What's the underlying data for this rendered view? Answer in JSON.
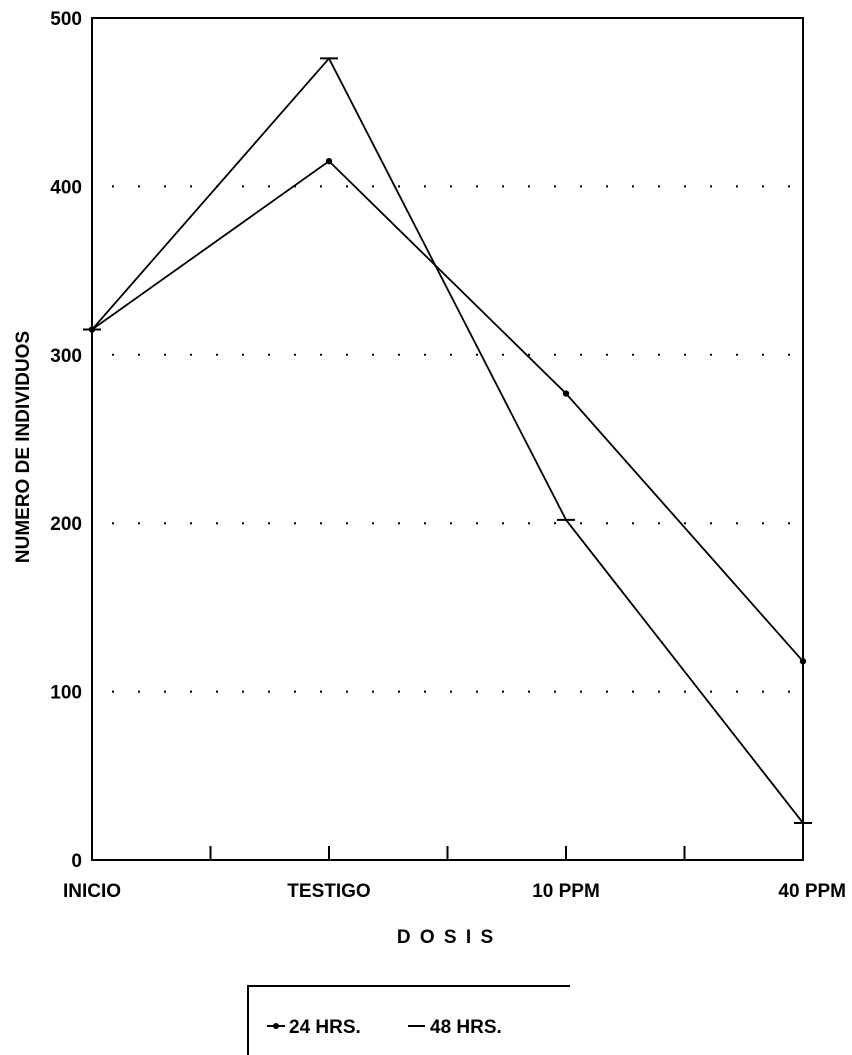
{
  "chart_data": {
    "type": "line",
    "title": "",
    "xlabel": "D O S I S",
    "ylabel": "NUMERO DE INDIVIDUOS",
    "categories": [
      "INICIO",
      "TESTIGO",
      "10 PPM",
      "40 PPM"
    ],
    "ylim": [
      0,
      500
    ],
    "yticks": [
      0,
      100,
      200,
      300,
      400,
      500
    ],
    "grid": "dotted horizontal lines",
    "legend_position": "bottom-center",
    "series": [
      {
        "name": "24 HRS.",
        "values": [
          315,
          415,
          277,
          118
        ],
        "marker": "dot",
        "color": "#000000"
      },
      {
        "name": "48 HRS.",
        "values": [
          315,
          476,
          202,
          22
        ],
        "marker": "dash",
        "color": "#000000"
      }
    ]
  },
  "legend": {
    "items": [
      {
        "label": "24 HRS.",
        "marker": "dot"
      },
      {
        "label": "48 HRS.",
        "marker": "dash"
      }
    ]
  }
}
